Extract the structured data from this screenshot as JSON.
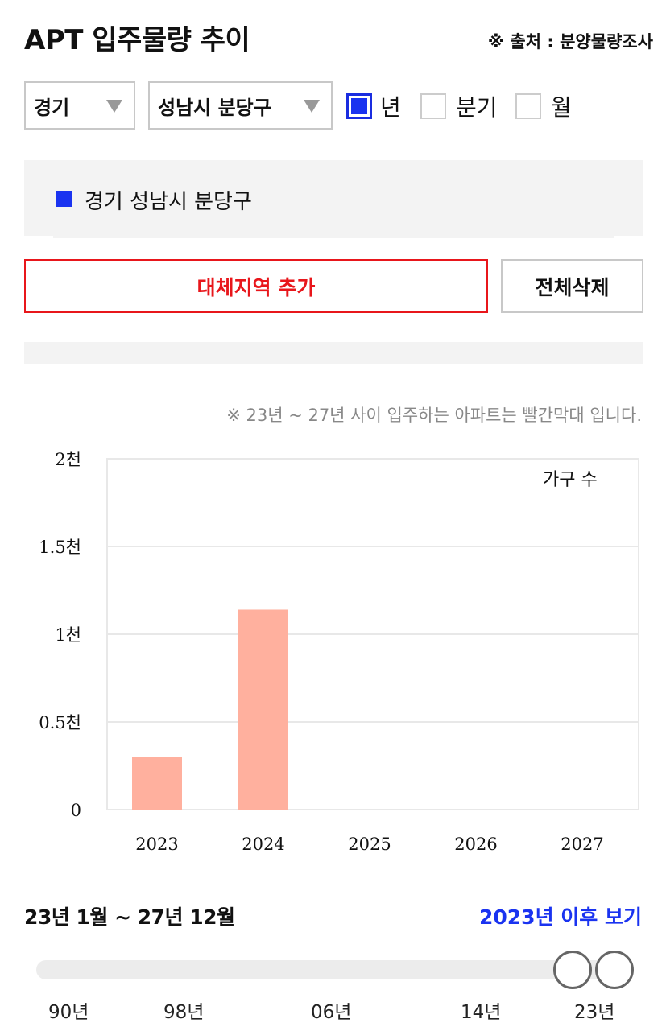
{
  "header": {
    "title": "APT 입주물량 추이",
    "source": "※ 출처 : 분양물량조사"
  },
  "filters": {
    "province": "경기",
    "district": "성남시 분당구",
    "period_options": [
      {
        "label": "년",
        "checked": true
      },
      {
        "label": "분기",
        "checked": false
      },
      {
        "label": "월",
        "checked": false
      }
    ]
  },
  "regions": [
    {
      "label": "경기 성남시 분당구",
      "color": "#1a33f0"
    }
  ],
  "actions": {
    "add_region": "대체지역 추가",
    "delete_all": "전체삭제"
  },
  "note": "※ 23년 ~ 27년 사이 입주하는 아파트는 빨간막대 입니다.",
  "chart_data": {
    "type": "bar",
    "categories": [
      "2023",
      "2024",
      "2025",
      "2026",
      "2027"
    ],
    "values": [
      300,
      1140,
      0,
      0,
      0
    ],
    "unit_label": "가구 수",
    "yticks": [
      "0",
      "0.5천",
      "1천",
      "1.5천",
      "2천"
    ],
    "ylim": [
      0,
      2000
    ],
    "bar_color": "#ffb09e",
    "grid": true
  },
  "range": {
    "label": "23년 1월 ~ 27년 12월",
    "after_link": "2023년 이후 보기"
  },
  "slider": {
    "labels": [
      "90년",
      "98년",
      "06년",
      "14년",
      "23년"
    ]
  },
  "colors": {
    "accent_blue": "#1a33f0",
    "accent_red": "#e8161b"
  }
}
